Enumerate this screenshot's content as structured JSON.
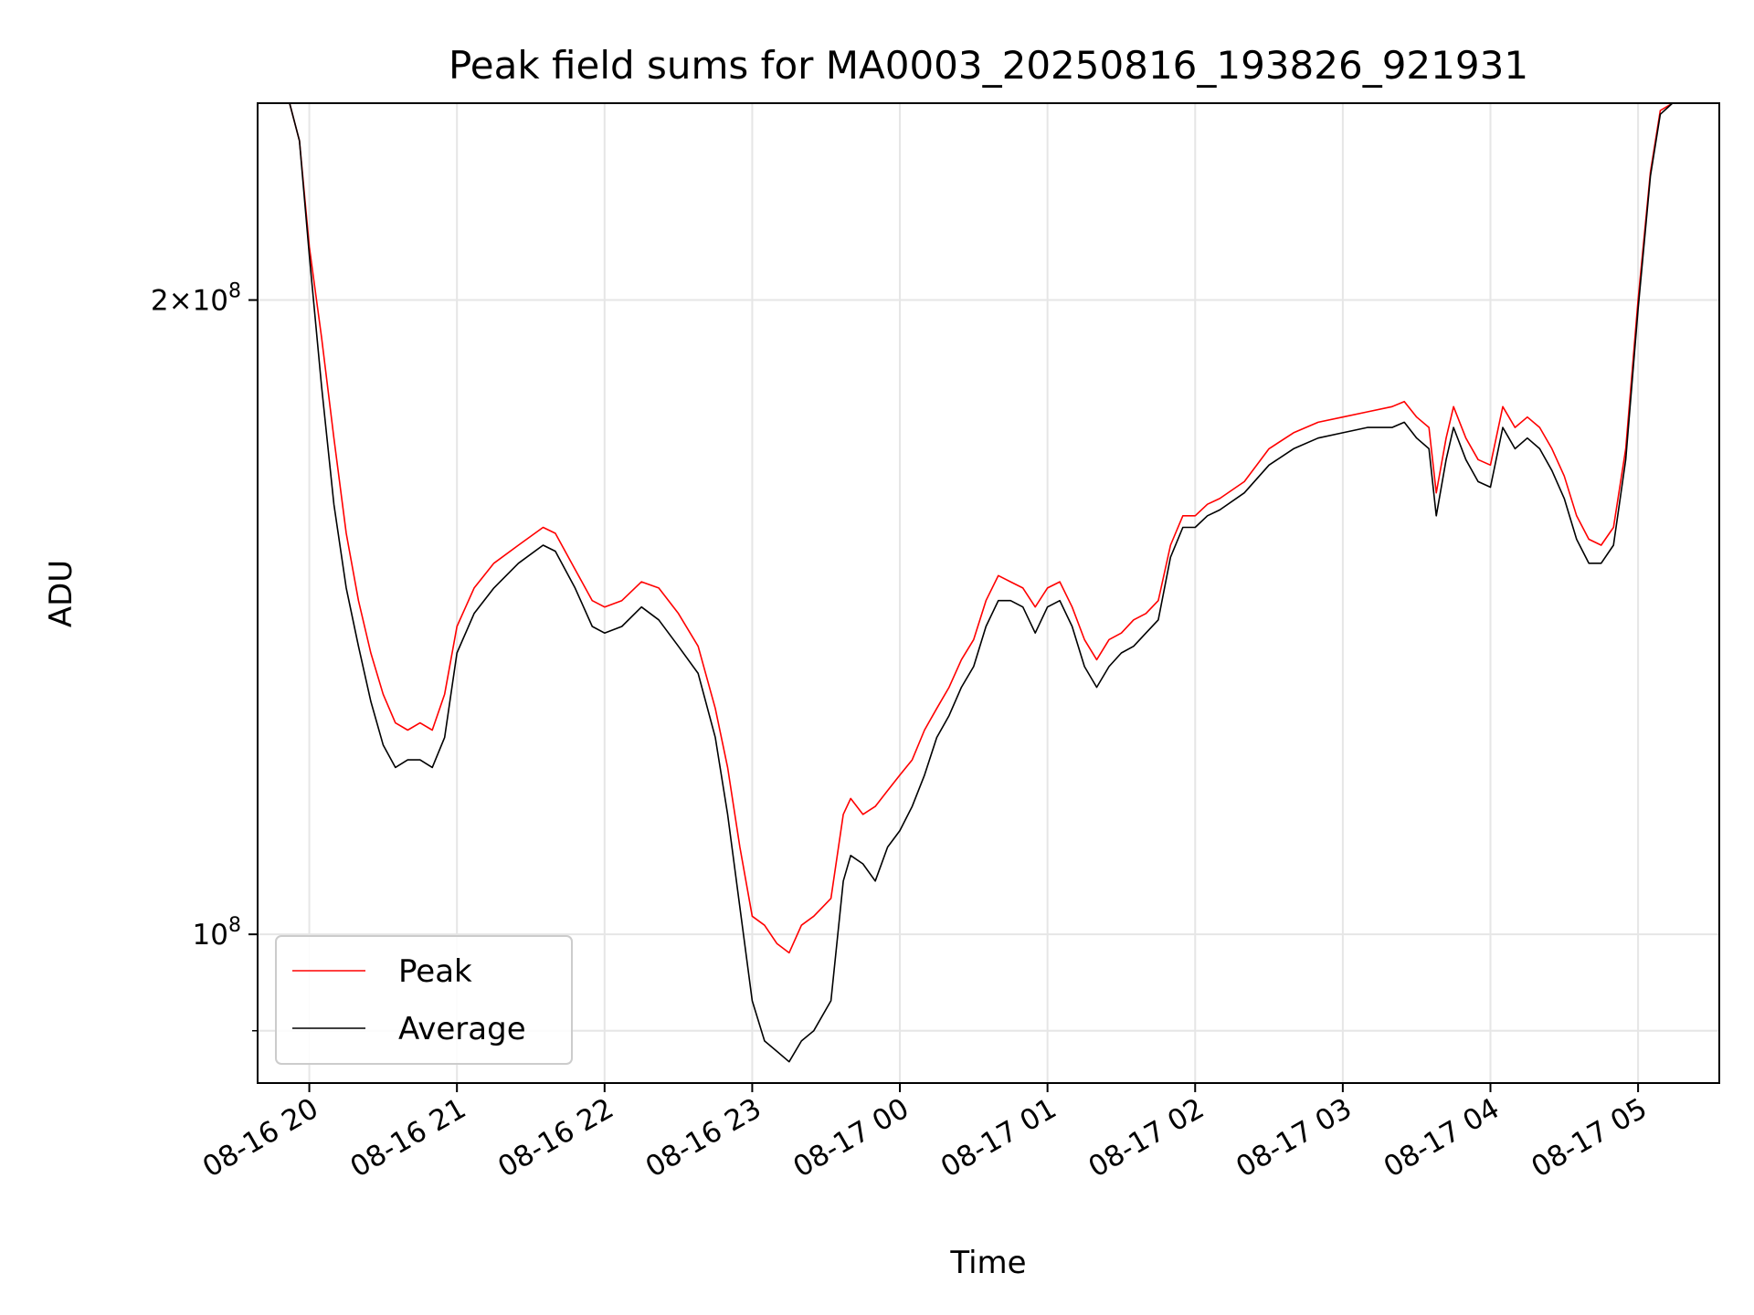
{
  "chart_data": {
    "type": "line",
    "title": "Peak field sums for MA0003_20250816_193826_921931",
    "xlabel": "Time",
    "ylabel": "ADU",
    "yscale": "log",
    "ylim": [
      85000000,
      248000000
    ],
    "xlim": [
      "2025-08-16T19:39",
      "2025-08-17T05:33"
    ],
    "grid": true,
    "legend_position": "lower-left",
    "xticks": [
      {
        "t": "2025-08-16T20:00",
        "label": "08-16 20"
      },
      {
        "t": "2025-08-16T21:00",
        "label": "08-16 21"
      },
      {
        "t": "2025-08-16T22:00",
        "label": "08-16 22"
      },
      {
        "t": "2025-08-16T23:00",
        "label": "08-16 23"
      },
      {
        "t": "2025-08-17T00:00",
        "label": "08-17 00"
      },
      {
        "t": "2025-08-17T01:00",
        "label": "08-17 01"
      },
      {
        "t": "2025-08-17T02:00",
        "label": "08-17 02"
      },
      {
        "t": "2025-08-17T03:00",
        "label": "08-17 03"
      },
      {
        "t": "2025-08-17T04:00",
        "label": "08-17 04"
      },
      {
        "t": "2025-08-17T05:00",
        "label": "08-17 05"
      }
    ],
    "yticks": [
      {
        "value": 100000000,
        "base": "10",
        "exp": "8",
        "mult": ""
      },
      {
        "value": 200000000,
        "base": "10",
        "exp": "8",
        "mult": "2×"
      }
    ],
    "yminor_ticks": [
      90000000
    ],
    "series": [
      {
        "name": "Peak",
        "color": "#ff0000",
        "points": [
          [
            "2025-08-16T19:39",
            248000000
          ],
          [
            "2025-08-16T19:52",
            248000000
          ],
          [
            "2025-08-16T19:56",
            238000000
          ],
          [
            "2025-08-16T20:00",
            212000000
          ],
          [
            "2025-08-16T20:05",
            192000000
          ],
          [
            "2025-08-16T20:10",
            172000000
          ],
          [
            "2025-08-16T20:15",
            155000000
          ],
          [
            "2025-08-16T20:20",
            144000000
          ],
          [
            "2025-08-16T20:25",
            136000000
          ],
          [
            "2025-08-16T20:30",
            130000000
          ],
          [
            "2025-08-16T20:35",
            126000000
          ],
          [
            "2025-08-16T20:40",
            125000000
          ],
          [
            "2025-08-16T20:45",
            126000000
          ],
          [
            "2025-08-16T20:50",
            125000000
          ],
          [
            "2025-08-16T20:55",
            130000000
          ],
          [
            "2025-08-16T21:00",
            140000000
          ],
          [
            "2025-08-16T21:07",
            146000000
          ],
          [
            "2025-08-16T21:15",
            150000000
          ],
          [
            "2025-08-16T21:25",
            153000000
          ],
          [
            "2025-08-16T21:35",
            156000000
          ],
          [
            "2025-08-16T21:40",
            155000000
          ],
          [
            "2025-08-16T21:48",
            149000000
          ],
          [
            "2025-08-16T21:55",
            144000000
          ],
          [
            "2025-08-16T22:00",
            143000000
          ],
          [
            "2025-08-16T22:07",
            144000000
          ],
          [
            "2025-08-16T22:15",
            147000000
          ],
          [
            "2025-08-16T22:22",
            146000000
          ],
          [
            "2025-08-16T22:30",
            142000000
          ],
          [
            "2025-08-16T22:38",
            137000000
          ],
          [
            "2025-08-16T22:45",
            128000000
          ],
          [
            "2025-08-16T22:50",
            120000000
          ],
          [
            "2025-08-16T22:55",
            110000000
          ],
          [
            "2025-08-16T23:00",
            102000000
          ],
          [
            "2025-08-16T23:05",
            101000000
          ],
          [
            "2025-08-16T23:10",
            99000000
          ],
          [
            "2025-08-16T23:15",
            98000000
          ],
          [
            "2025-08-16T23:20",
            101000000
          ],
          [
            "2025-08-16T23:25",
            102000000
          ],
          [
            "2025-08-16T23:32",
            104000000
          ],
          [
            "2025-08-16T23:37",
            114000000
          ],
          [
            "2025-08-16T23:40",
            116000000
          ],
          [
            "2025-08-16T23:45",
            114000000
          ],
          [
            "2025-08-16T23:50",
            115000000
          ],
          [
            "2025-08-16T23:55",
            117000000
          ],
          [
            "2025-08-17T00:00",
            119000000
          ],
          [
            "2025-08-17T00:05",
            121000000
          ],
          [
            "2025-08-17T00:10",
            125000000
          ],
          [
            "2025-08-17T00:15",
            128000000
          ],
          [
            "2025-08-17T00:20",
            131000000
          ],
          [
            "2025-08-17T00:25",
            135000000
          ],
          [
            "2025-08-17T00:30",
            138000000
          ],
          [
            "2025-08-17T00:35",
            144000000
          ],
          [
            "2025-08-17T00:40",
            148000000
          ],
          [
            "2025-08-17T00:45",
            147000000
          ],
          [
            "2025-08-17T00:50",
            146000000
          ],
          [
            "2025-08-17T00:55",
            143000000
          ],
          [
            "2025-08-17T01:00",
            146000000
          ],
          [
            "2025-08-17T01:05",
            147000000
          ],
          [
            "2025-08-17T01:10",
            143000000
          ],
          [
            "2025-08-17T01:15",
            138000000
          ],
          [
            "2025-08-17T01:20",
            135000000
          ],
          [
            "2025-08-17T01:25",
            138000000
          ],
          [
            "2025-08-17T01:30",
            139000000
          ],
          [
            "2025-08-17T01:35",
            141000000
          ],
          [
            "2025-08-17T01:40",
            142000000
          ],
          [
            "2025-08-17T01:45",
            144000000
          ],
          [
            "2025-08-17T01:50",
            153000000
          ],
          [
            "2025-08-17T01:55",
            158000000
          ],
          [
            "2025-08-17T02:00",
            158000000
          ],
          [
            "2025-08-17T02:05",
            160000000
          ],
          [
            "2025-08-17T02:10",
            161000000
          ],
          [
            "2025-08-17T02:20",
            164000000
          ],
          [
            "2025-08-17T02:30",
            170000000
          ],
          [
            "2025-08-17T02:40",
            173000000
          ],
          [
            "2025-08-17T02:50",
            175000000
          ],
          [
            "2025-08-17T03:00",
            176000000
          ],
          [
            "2025-08-17T03:10",
            177000000
          ],
          [
            "2025-08-17T03:20",
            178000000
          ],
          [
            "2025-08-17T03:25",
            179000000
          ],
          [
            "2025-08-17T03:30",
            176000000
          ],
          [
            "2025-08-17T03:35",
            174000000
          ],
          [
            "2025-08-17T03:38",
            162000000
          ],
          [
            "2025-08-17T03:42",
            172000000
          ],
          [
            "2025-08-17T03:45",
            178000000
          ],
          [
            "2025-08-17T03:50",
            172000000
          ],
          [
            "2025-08-17T03:55",
            168000000
          ],
          [
            "2025-08-17T04:00",
            167000000
          ],
          [
            "2025-08-17T04:05",
            178000000
          ],
          [
            "2025-08-17T04:10",
            174000000
          ],
          [
            "2025-08-17T04:15",
            176000000
          ],
          [
            "2025-08-17T04:20",
            174000000
          ],
          [
            "2025-08-17T04:25",
            170000000
          ],
          [
            "2025-08-17T04:30",
            165000000
          ],
          [
            "2025-08-17T04:35",
            158000000
          ],
          [
            "2025-08-17T04:40",
            154000000
          ],
          [
            "2025-08-17T04:45",
            153000000
          ],
          [
            "2025-08-17T04:50",
            156000000
          ],
          [
            "2025-08-17T04:55",
            170000000
          ],
          [
            "2025-08-17T05:00",
            200000000
          ],
          [
            "2025-08-17T05:05",
            230000000
          ],
          [
            "2025-08-17T05:09",
            246000000
          ],
          [
            "2025-08-17T05:14",
            248000000
          ],
          [
            "2025-08-17T05:33",
            248000000
          ]
        ]
      },
      {
        "name": "Average",
        "color": "#000000",
        "points": [
          [
            "2025-08-16T19:39",
            248000000
          ],
          [
            "2025-08-16T19:52",
            248000000
          ],
          [
            "2025-08-16T19:56",
            238000000
          ],
          [
            "2025-08-16T20:00",
            210000000
          ],
          [
            "2025-08-16T20:05",
            182000000
          ],
          [
            "2025-08-16T20:10",
            160000000
          ],
          [
            "2025-08-16T20:15",
            146000000
          ],
          [
            "2025-08-16T20:20",
            137000000
          ],
          [
            "2025-08-16T20:25",
            129000000
          ],
          [
            "2025-08-16T20:30",
            123000000
          ],
          [
            "2025-08-16T20:35",
            120000000
          ],
          [
            "2025-08-16T20:40",
            121000000
          ],
          [
            "2025-08-16T20:45",
            121000000
          ],
          [
            "2025-08-16T20:50",
            120000000
          ],
          [
            "2025-08-16T20:55",
            124000000
          ],
          [
            "2025-08-16T21:00",
            136000000
          ],
          [
            "2025-08-16T21:07",
            142000000
          ],
          [
            "2025-08-16T21:15",
            146000000
          ],
          [
            "2025-08-16T21:25",
            150000000
          ],
          [
            "2025-08-16T21:35",
            153000000
          ],
          [
            "2025-08-16T21:40",
            152000000
          ],
          [
            "2025-08-16T21:48",
            146000000
          ],
          [
            "2025-08-16T21:55",
            140000000
          ],
          [
            "2025-08-16T22:00",
            139000000
          ],
          [
            "2025-08-16T22:07",
            140000000
          ],
          [
            "2025-08-16T22:15",
            143000000
          ],
          [
            "2025-08-16T22:22",
            141000000
          ],
          [
            "2025-08-16T22:30",
            137000000
          ],
          [
            "2025-08-16T22:38",
            133000000
          ],
          [
            "2025-08-16T22:45",
            124000000
          ],
          [
            "2025-08-16T22:50",
            114000000
          ],
          [
            "2025-08-16T22:55",
            103000000
          ],
          [
            "2025-08-16T23:00",
            93000000
          ],
          [
            "2025-08-16T23:05",
            89000000
          ],
          [
            "2025-08-16T23:10",
            88000000
          ],
          [
            "2025-08-16T23:15",
            87000000
          ],
          [
            "2025-08-16T23:20",
            89000000
          ],
          [
            "2025-08-16T23:25",
            90000000
          ],
          [
            "2025-08-16T23:32",
            93000000
          ],
          [
            "2025-08-16T23:37",
            106000000
          ],
          [
            "2025-08-16T23:40",
            109000000
          ],
          [
            "2025-08-16T23:45",
            108000000
          ],
          [
            "2025-08-16T23:50",
            106000000
          ],
          [
            "2025-08-16T23:55",
            110000000
          ],
          [
            "2025-08-17T00:00",
            112000000
          ],
          [
            "2025-08-17T00:05",
            115000000
          ],
          [
            "2025-08-17T00:10",
            119000000
          ],
          [
            "2025-08-17T00:15",
            124000000
          ],
          [
            "2025-08-17T00:20",
            127000000
          ],
          [
            "2025-08-17T00:25",
            131000000
          ],
          [
            "2025-08-17T00:30",
            134000000
          ],
          [
            "2025-08-17T00:35",
            140000000
          ],
          [
            "2025-08-17T00:40",
            144000000
          ],
          [
            "2025-08-17T00:45",
            144000000
          ],
          [
            "2025-08-17T00:50",
            143000000
          ],
          [
            "2025-08-17T00:55",
            139000000
          ],
          [
            "2025-08-17T01:00",
            143000000
          ],
          [
            "2025-08-17T01:05",
            144000000
          ],
          [
            "2025-08-17T01:10",
            140000000
          ],
          [
            "2025-08-17T01:15",
            134000000
          ],
          [
            "2025-08-17T01:20",
            131000000
          ],
          [
            "2025-08-17T01:25",
            134000000
          ],
          [
            "2025-08-17T01:30",
            136000000
          ],
          [
            "2025-08-17T01:35",
            137000000
          ],
          [
            "2025-08-17T01:40",
            139000000
          ],
          [
            "2025-08-17T01:45",
            141000000
          ],
          [
            "2025-08-17T01:50",
            151000000
          ],
          [
            "2025-08-17T01:55",
            156000000
          ],
          [
            "2025-08-17T02:00",
            156000000
          ],
          [
            "2025-08-17T02:05",
            158000000
          ],
          [
            "2025-08-17T02:10",
            159000000
          ],
          [
            "2025-08-17T02:20",
            162000000
          ],
          [
            "2025-08-17T02:30",
            167000000
          ],
          [
            "2025-08-17T02:40",
            170000000
          ],
          [
            "2025-08-17T02:50",
            172000000
          ],
          [
            "2025-08-17T03:00",
            173000000
          ],
          [
            "2025-08-17T03:10",
            174000000
          ],
          [
            "2025-08-17T03:20",
            174000000
          ],
          [
            "2025-08-17T03:25",
            175000000
          ],
          [
            "2025-08-17T03:30",
            172000000
          ],
          [
            "2025-08-17T03:35",
            170000000
          ],
          [
            "2025-08-17T03:38",
            158000000
          ],
          [
            "2025-08-17T03:42",
            168000000
          ],
          [
            "2025-08-17T03:45",
            174000000
          ],
          [
            "2025-08-17T03:50",
            168000000
          ],
          [
            "2025-08-17T03:55",
            164000000
          ],
          [
            "2025-08-17T04:00",
            163000000
          ],
          [
            "2025-08-17T04:05",
            174000000
          ],
          [
            "2025-08-17T04:10",
            170000000
          ],
          [
            "2025-08-17T04:15",
            172000000
          ],
          [
            "2025-08-17T04:20",
            170000000
          ],
          [
            "2025-08-17T04:25",
            166000000
          ],
          [
            "2025-08-17T04:30",
            161000000
          ],
          [
            "2025-08-17T04:35",
            154000000
          ],
          [
            "2025-08-17T04:40",
            150000000
          ],
          [
            "2025-08-17T04:45",
            150000000
          ],
          [
            "2025-08-17T04:50",
            153000000
          ],
          [
            "2025-08-17T04:55",
            168000000
          ],
          [
            "2025-08-17T05:00",
            198000000
          ],
          [
            "2025-08-17T05:05",
            229000000
          ],
          [
            "2025-08-17T05:09",
            245000000
          ],
          [
            "2025-08-17T05:14",
            248000000
          ],
          [
            "2025-08-17T05:33",
            248000000
          ]
        ]
      }
    ]
  }
}
